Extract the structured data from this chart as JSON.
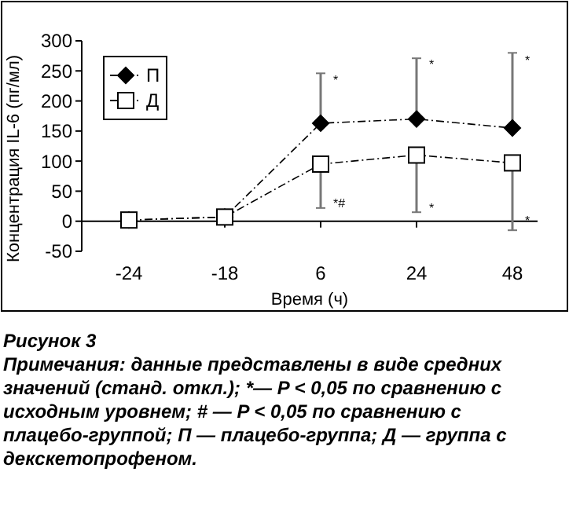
{
  "chart_data": {
    "type": "line",
    "title": "Рисунок 3",
    "xlabel": "Время (ч)",
    "ylabel": "Концентрация IL-6 (пг/мл)",
    "categories": [
      "-24",
      "-18",
      "6",
      "24",
      "48"
    ],
    "series": [
      {
        "name": "П",
        "color": "#000000",
        "marker": "diamond",
        "line_style": "dashed",
        "values": [
          2,
          7,
          163,
          170,
          155
        ],
        "errors": [
          null,
          null,
          [
            163,
            246
          ],
          [
            170,
            271
          ],
          [
            155,
            280
          ]
        ]
      },
      {
        "name": "Д",
        "color": "#000000",
        "marker": "square",
        "line_style": "dashed",
        "values": [
          2,
          7,
          95,
          110,
          97
        ],
        "errors": [
          null,
          null,
          [
            22,
            95
          ],
          [
            15,
            110
          ],
          [
            -15,
            97
          ]
        ]
      }
    ],
    "ylim": [
      -50,
      300
    ],
    "yticks": [
      -50,
      0,
      50,
      100,
      150,
      200,
      250,
      300
    ],
    "legend": "top left",
    "grid": false,
    "annotations": [
      {
        "text": "*",
        "x": "6",
        "y": 235
      },
      {
        "text": "*",
        "x": "24",
        "y": 262
      },
      {
        "text": "*",
        "x": "48",
        "y": 268
      },
      {
        "text": "*#",
        "x": "6",
        "y": 30
      },
      {
        "text": "*",
        "x": "24",
        "y": 22
      },
      {
        "text": "*",
        "x": "48",
        "y": 2
      },
      "Примечания: данные представлены в виде средних значений (станд. откл.); *— P < 0,05 по сравнению с исходным уровнем; # — P < 0,05 по сравнению с плацебо-группой; П — плацебо-группа; Д — группа с декскетопрофеном."
    ]
  }
}
